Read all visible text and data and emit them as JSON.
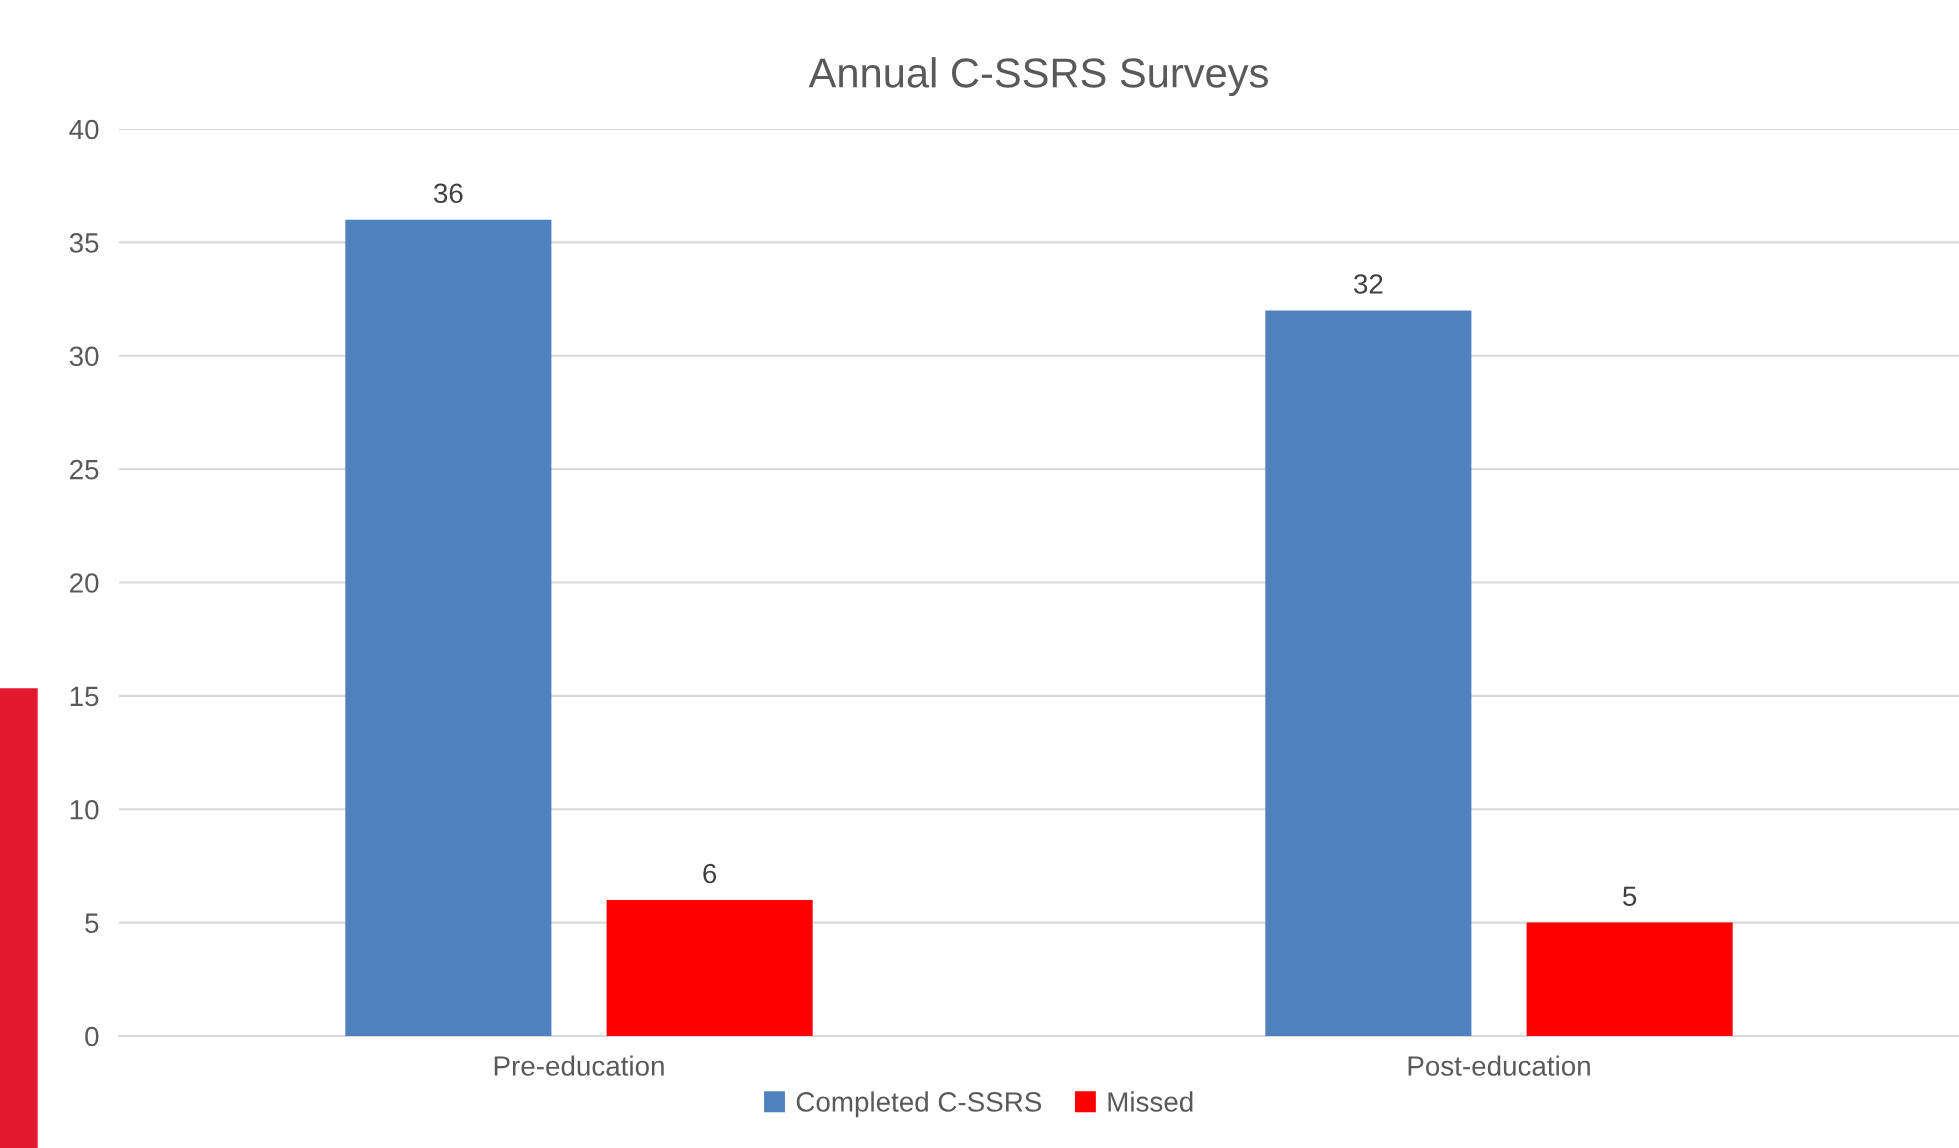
{
  "chart_data": {
    "type": "bar",
    "title": "Annual C-SSRS Surveys",
    "categories": [
      "Pre-education",
      "Post-education"
    ],
    "series": [
      {
        "name": "Completed C-SSRS",
        "color": "#4f81bd",
        "values": [
          36,
          32
        ]
      },
      {
        "name": "Missed",
        "color": "#ff0000",
        "values": [
          6,
          5
        ]
      }
    ],
    "ylim": [
      0,
      40
    ],
    "yticks": [
      0,
      5,
      10,
      15,
      20,
      25,
      30,
      35,
      40
    ],
    "grid": "y",
    "legend": "bottom",
    "data_labels": true
  }
}
